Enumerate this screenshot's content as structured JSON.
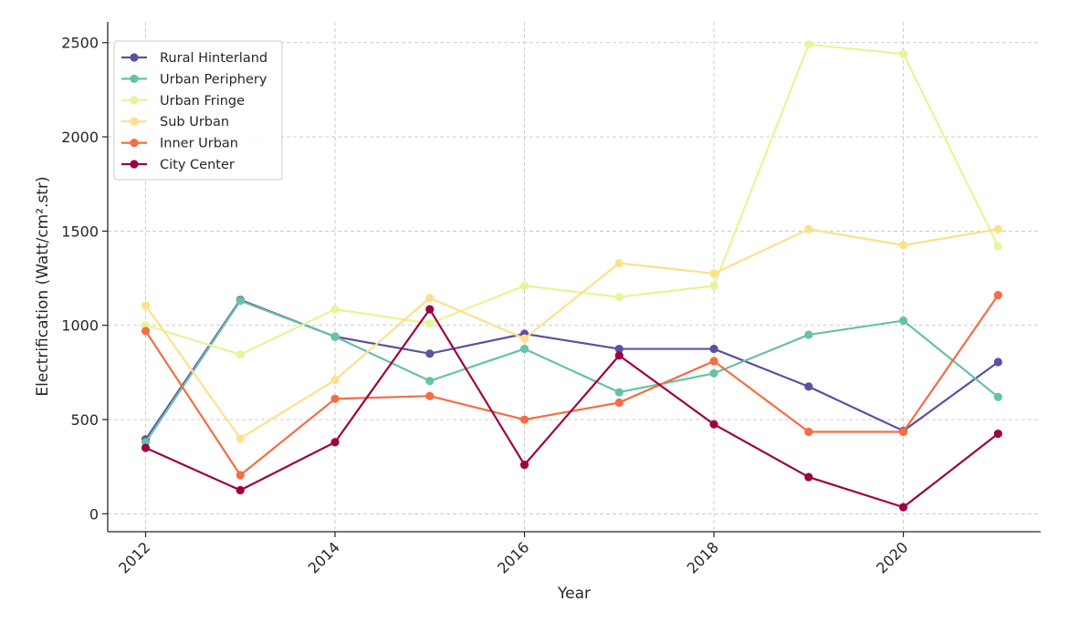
{
  "chart_data": {
    "type": "line",
    "title": "",
    "xlabel": "Year",
    "ylabel": "Electrification (Watt/cm².str)",
    "x": [
      2012,
      2013,
      2014,
      2015,
      2016,
      2017,
      2018,
      2019,
      2020,
      2021
    ],
    "x_ticks": [
      "2012",
      "2014",
      "2016",
      "2018",
      "2020"
    ],
    "y_ticks": [
      "0",
      "500",
      "1000",
      "1500",
      "2000",
      "2500"
    ],
    "xlim": [
      2011.6,
      2021.45
    ],
    "ylim": [
      -95,
      2610
    ],
    "grid": true,
    "legend_position": "top-left",
    "series": [
      {
        "name": "Rural Hinterland",
        "color": "#5e4fa2",
        "values": [
          395,
          1135,
          940,
          850,
          955,
          875,
          875,
          675,
          440,
          805
        ]
      },
      {
        "name": "Urban Periphery",
        "color": "#66c2a5",
        "values": [
          380,
          1130,
          940,
          705,
          875,
          645,
          745,
          950,
          1025,
          620
        ]
      },
      {
        "name": "Urban Fringe",
        "color": "#e6f598",
        "values": [
          1000,
          845,
          1085,
          1010,
          1210,
          1150,
          1210,
          2490,
          2440,
          1420
        ]
      },
      {
        "name": "Sub Urban",
        "color": "#fee08b",
        "values": [
          1105,
          400,
          710,
          1145,
          930,
          1330,
          1275,
          1510,
          1425,
          1510
        ]
      },
      {
        "name": "Inner Urban",
        "color": "#f46d43",
        "values": [
          970,
          205,
          610,
          625,
          500,
          590,
          810,
          435,
          435,
          1160
        ]
      },
      {
        "name": "City Center",
        "color": "#9e0142",
        "values": [
          350,
          125,
          380,
          1085,
          260,
          840,
          475,
          195,
          35,
          425
        ]
      }
    ]
  }
}
